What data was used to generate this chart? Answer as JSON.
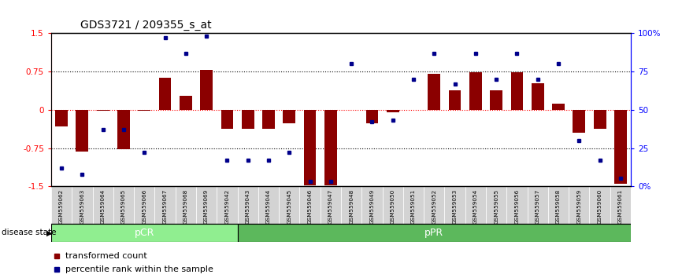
{
  "title": "GDS3721 / 209355_s_at",
  "samples": [
    "GSM559062",
    "GSM559063",
    "GSM559064",
    "GSM559065",
    "GSM559066",
    "GSM559067",
    "GSM559068",
    "GSM559069",
    "GSM559042",
    "GSM559043",
    "GSM559044",
    "GSM559045",
    "GSM559046",
    "GSM559047",
    "GSM559048",
    "GSM559049",
    "GSM559050",
    "GSM559051",
    "GSM559052",
    "GSM559053",
    "GSM559054",
    "GSM559055",
    "GSM559056",
    "GSM559057",
    "GSM559058",
    "GSM559059",
    "GSM559060",
    "GSM559061"
  ],
  "transformed_count": [
    -0.32,
    -0.82,
    -0.02,
    -0.78,
    -0.02,
    0.63,
    0.27,
    0.78,
    -0.38,
    -0.38,
    -0.38,
    -0.27,
    -1.48,
    -1.48,
    0.0,
    -0.27,
    -0.05,
    0.0,
    0.7,
    0.38,
    0.73,
    0.38,
    0.73,
    0.52,
    0.12,
    -0.45,
    -0.38,
    -1.45
  ],
  "percentile_rank": [
    12,
    8,
    37,
    37,
    22,
    97,
    87,
    98,
    17,
    17,
    17,
    22,
    3,
    3,
    80,
    42,
    43,
    70,
    87,
    67,
    87,
    70,
    87,
    70,
    80,
    30,
    17,
    5
  ],
  "pcr_count": 9,
  "ppr_count": 19,
  "bar_color": "#8B0000",
  "scatter_color": "#00008B",
  "ylim_left": [
    -1.5,
    1.5
  ],
  "ylim_right": [
    0,
    100
  ],
  "yticks_left": [
    -1.5,
    -0.75,
    0,
    0.75,
    1.5
  ],
  "yticks_right": [
    0,
    25,
    50,
    75,
    100
  ],
  "yticklabels_left": [
    "-1.5",
    "-0.75",
    "0",
    "0.75",
    "1.5"
  ],
  "yticklabels_right": [
    "0%",
    "25",
    "50",
    "75",
    "100%"
  ],
  "dotted_lines": [
    0.75,
    -0.75
  ],
  "pcr_color": "#90EE90",
  "ppr_color": "#5CB85C",
  "legend_bar_label": "transformed count",
  "legend_scatter_label": "percentile rank within the sample",
  "disease_state_label": "disease state"
}
